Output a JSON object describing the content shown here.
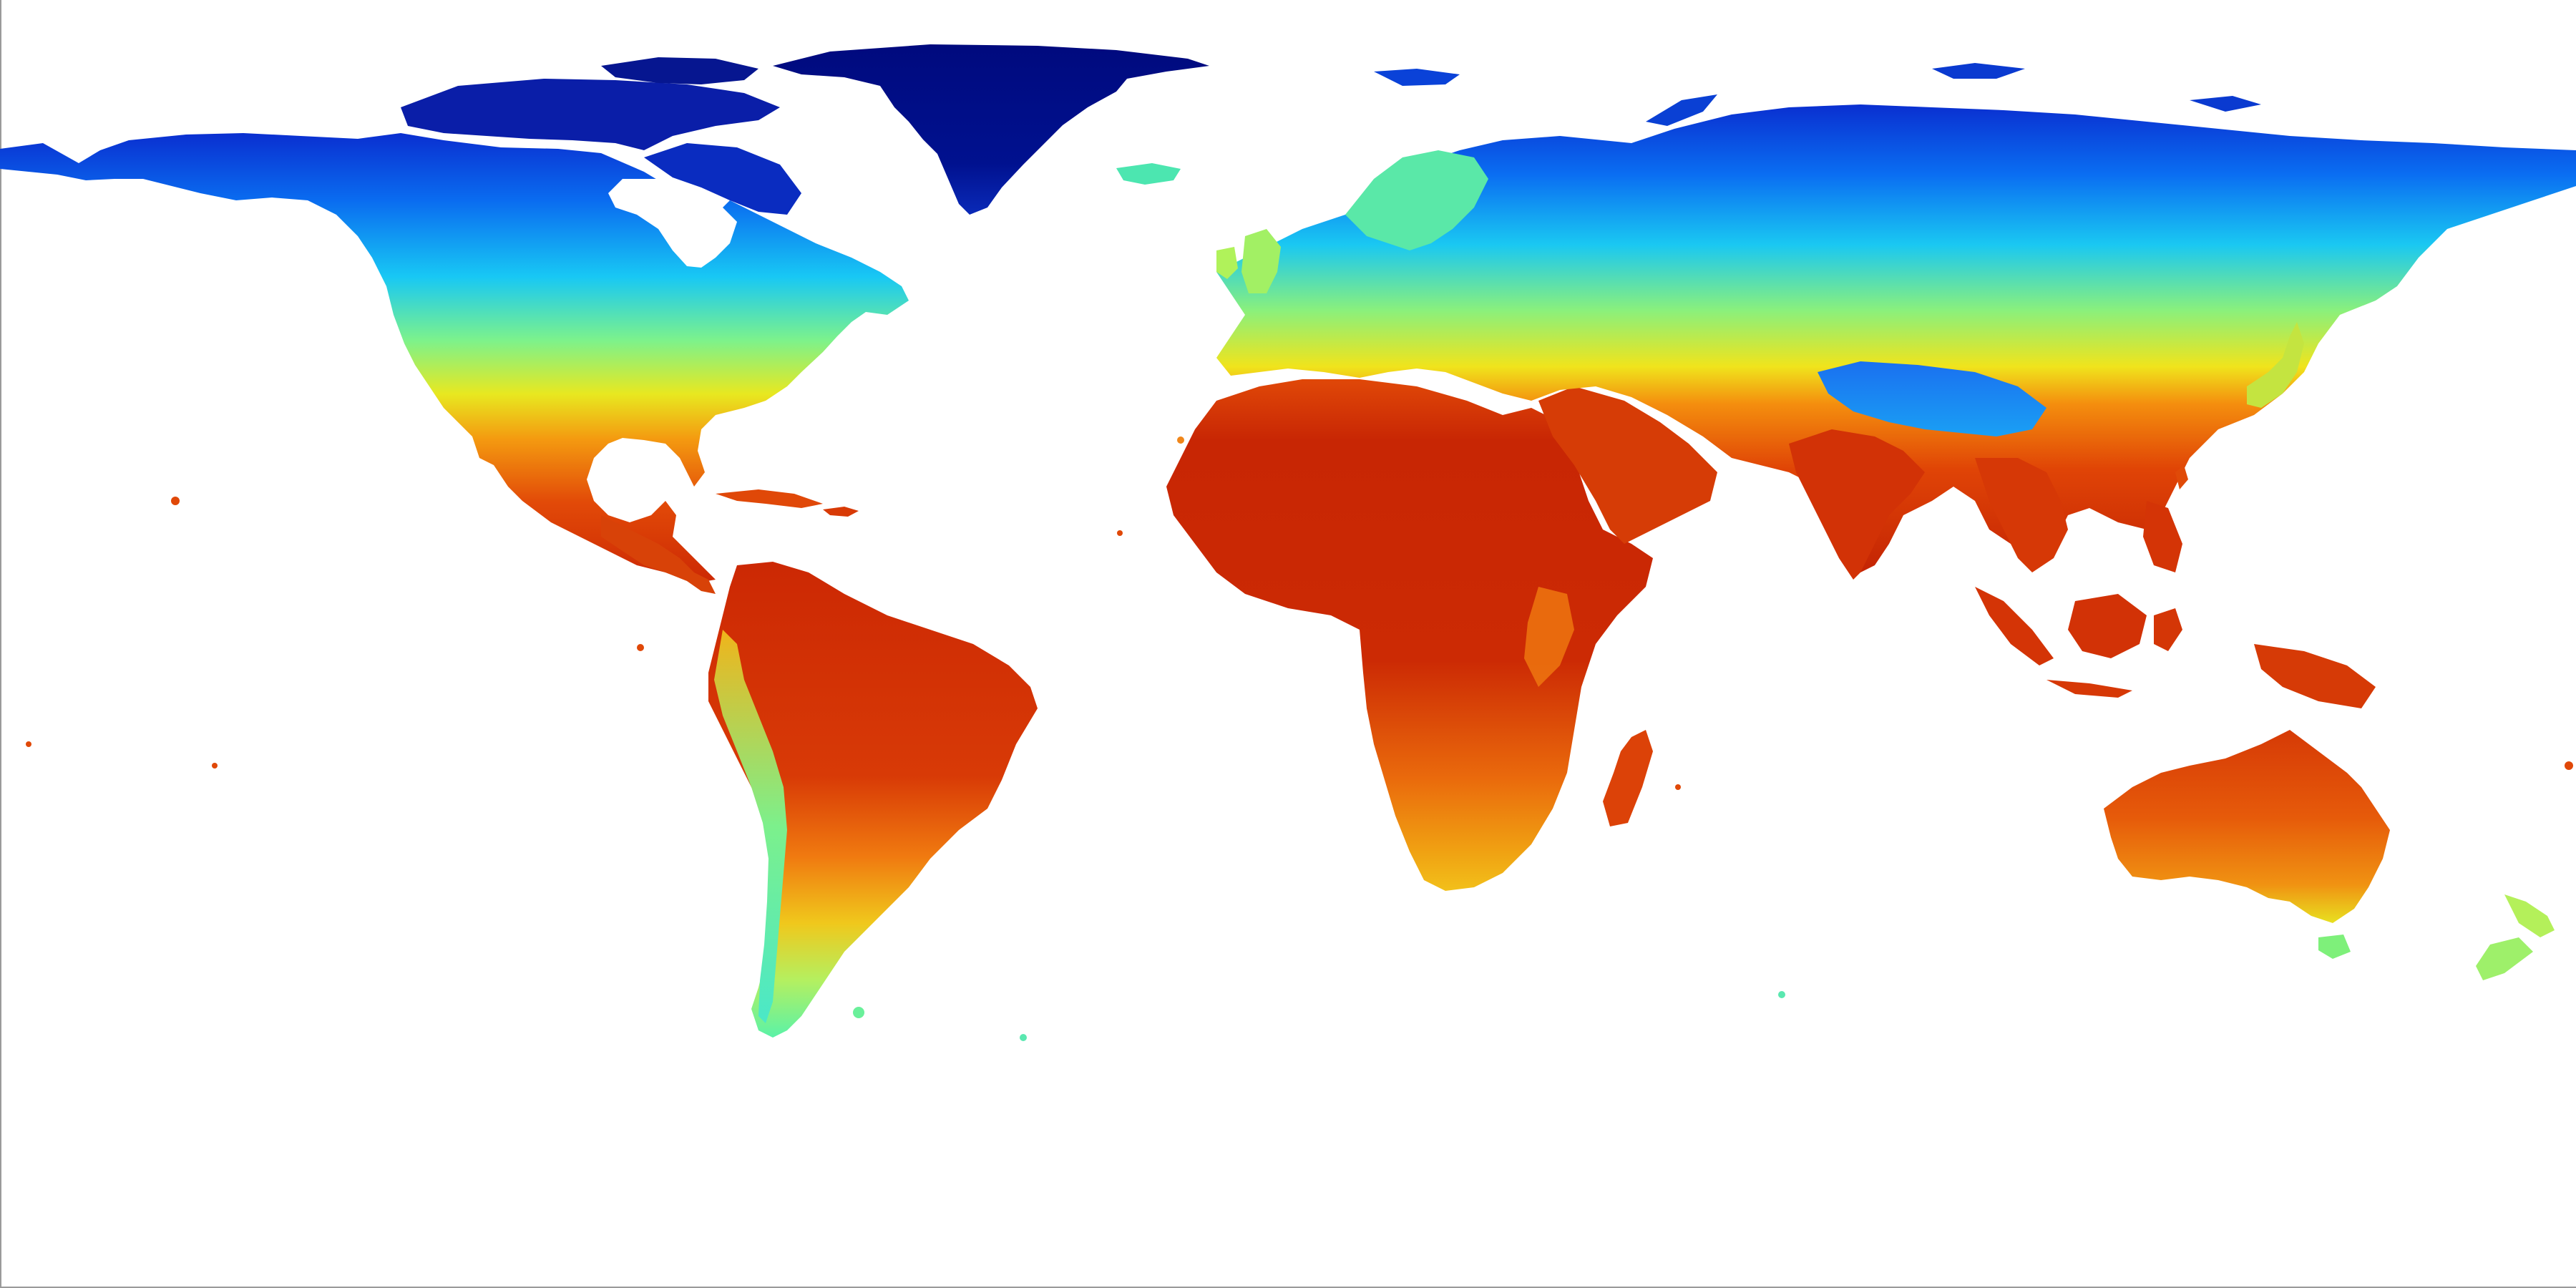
{
  "map": {
    "projection": "equirectangular",
    "background_color": "#ffffff",
    "colormap": "jet",
    "colormap_stops": [
      "#00007f",
      "#0000ff",
      "#0080ff",
      "#00ffff",
      "#80ff80",
      "#ffff00",
      "#ff8000",
      "#ff0000",
      "#7f0000"
    ],
    "ocean_color": "#ffffff",
    "legend": "none",
    "axes": "none",
    "landmasses": [
      {
        "name": "greenland",
        "color": "#00108a"
      },
      {
        "name": "north-america",
        "color_north": "#0a52e6",
        "color_south": "#f07812"
      },
      {
        "name": "south-america",
        "color": "#d73a08"
      },
      {
        "name": "africa",
        "color": "#cc2b06"
      },
      {
        "name": "eurasia",
        "color_north": "#1460ee",
        "color_south": "#e8740c"
      },
      {
        "name": "australia",
        "color": "#e85810"
      },
      {
        "name": "new-zealand",
        "color": "#a8f05a"
      }
    ]
  }
}
